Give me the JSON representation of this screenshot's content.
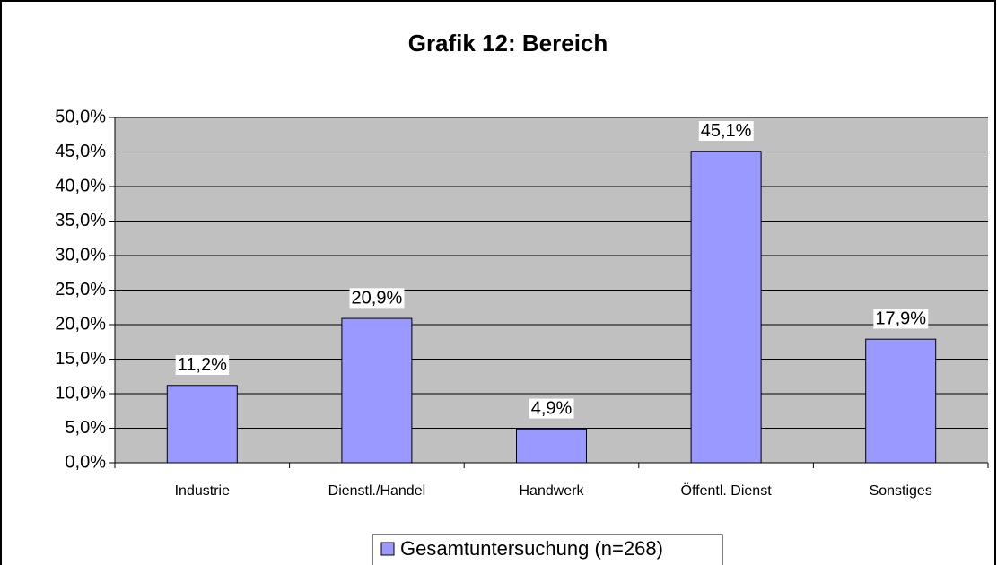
{
  "chart_data": {
    "type": "bar",
    "title": "Grafik 12: Bereich",
    "categories": [
      "Industrie",
      "Dienstl./Handel",
      "Handwerk",
      "Öffentl. Dienst",
      "Sonstiges"
    ],
    "series": [
      {
        "name": "Gesamtuntersuchung (n=268)",
        "color": "#9999ff",
        "values": [
          11.2,
          20.9,
          4.9,
          45.1,
          17.9
        ],
        "value_labels": [
          "11,2%",
          "20,9%",
          "4,9%",
          "45,1%",
          "17,9%"
        ]
      }
    ],
    "ylim": [
      0,
      50
    ],
    "yticks": [
      {
        "value": 0,
        "label": "0,0%"
      },
      {
        "value": 5,
        "label": "5,0%"
      },
      {
        "value": 10,
        "label": "10,0%"
      },
      {
        "value": 15,
        "label": "15,0%"
      },
      {
        "value": 20,
        "label": "20,0%"
      },
      {
        "value": 25,
        "label": "25,0%"
      },
      {
        "value": 30,
        "label": "30,0%"
      },
      {
        "value": 35,
        "label": "35,0%"
      },
      {
        "value": 40,
        "label": "40,0%"
      },
      {
        "value": 45,
        "label": "45,0%"
      },
      {
        "value": 50,
        "label": "50,0%"
      }
    ],
    "grid": true
  }
}
